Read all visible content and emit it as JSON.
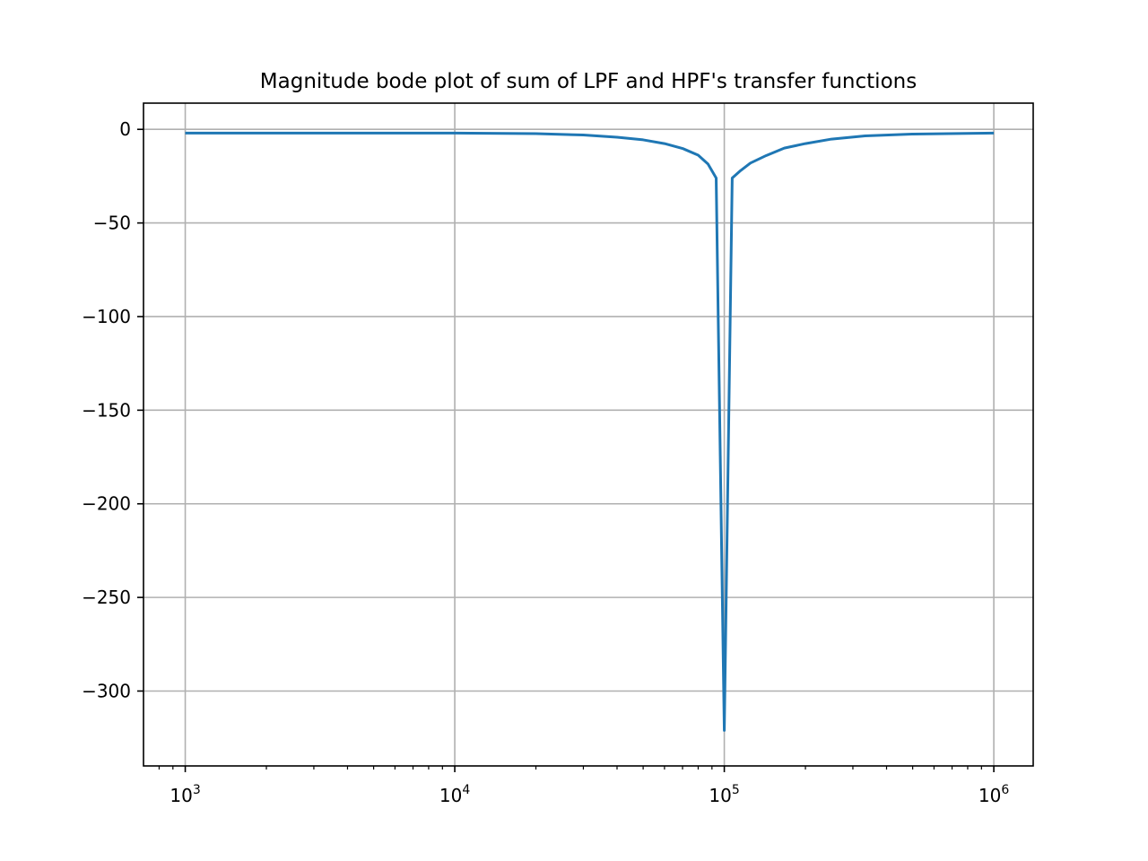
{
  "chart_data": {
    "type": "line",
    "title": "Magnitude bode plot of sum of LPF and HPF's transfer functions",
    "xlabel": "",
    "ylabel": "",
    "x_scale": "log",
    "xlim": [
      700,
      1400000
    ],
    "ylim": [
      -340,
      14
    ],
    "grid": true,
    "x_ticks": [
      {
        "value": 1000,
        "base": "10",
        "exp": "3"
      },
      {
        "value": 10000,
        "base": "10",
        "exp": "4"
      },
      {
        "value": 100000,
        "base": "10",
        "exp": "5"
      },
      {
        "value": 1000000,
        "base": "10",
        "exp": "6"
      }
    ],
    "y_ticks": [
      {
        "value": 0,
        "label": "0"
      },
      {
        "value": -50,
        "label": "−50"
      },
      {
        "value": -100,
        "label": "−100"
      },
      {
        "value": -150,
        "label": "−150"
      },
      {
        "value": -200,
        "label": "−200"
      },
      {
        "value": -250,
        "label": "−250"
      },
      {
        "value": -300,
        "label": "−300"
      }
    ],
    "series": [
      {
        "color": "#1f77b4",
        "x": [
          1000,
          2000,
          5000,
          10000,
          20000,
          30000,
          40000,
          50000,
          60000,
          70000,
          80000,
          87000,
          93300,
          100000,
          107000,
          115000,
          125000,
          143000,
          167000,
          200000,
          250000,
          333000,
          500000,
          1000000
        ],
        "y": [
          -2,
          -2,
          -2,
          -2,
          -2.3,
          -3,
          -4.2,
          -5.6,
          -7.6,
          -10.2,
          -13.8,
          -18.5,
          -26,
          -321,
          -26,
          -22,
          -18,
          -14,
          -10,
          -7.6,
          -5.2,
          -3.5,
          -2.5,
          -2
        ]
      }
    ]
  }
}
